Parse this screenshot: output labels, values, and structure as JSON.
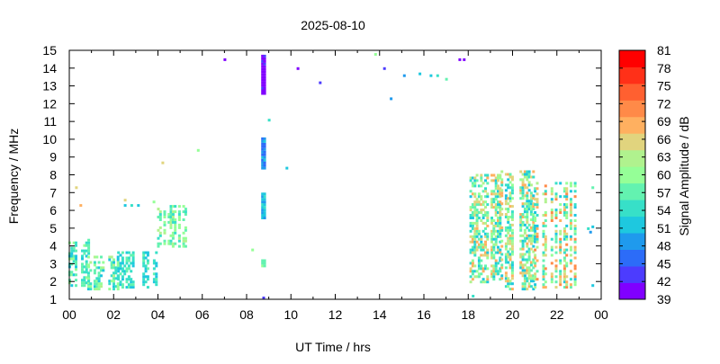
{
  "chart_data": {
    "type": "heatmap",
    "title": "2025-08-10",
    "xlabel": "UT Time / hrs",
    "ylabel": "Frequency / MHz",
    "xlim": [
      0,
      24
    ],
    "ylim": [
      1,
      15
    ],
    "x_ticks": [
      "00",
      "02",
      "04",
      "06",
      "08",
      "10",
      "12",
      "14",
      "16",
      "18",
      "20",
      "22",
      "00"
    ],
    "y_ticks": [
      "1",
      "2",
      "3",
      "4",
      "5",
      "6",
      "7",
      "8",
      "9",
      "10",
      "11",
      "12",
      "13",
      "14",
      "15"
    ],
    "colorbar": {
      "label": "Signal Amplitude / dB",
      "ticks": [
        "39",
        "42",
        "45",
        "48",
        "51",
        "54",
        "57",
        "60",
        "63",
        "66",
        "69",
        "72",
        "75",
        "78",
        "81"
      ],
      "range": [
        39,
        81
      ],
      "colors": [
        "#8000ff",
        "#4c3cfe",
        "#2c6cf8",
        "#1f9aed",
        "#1ec8df",
        "#37e0c8",
        "#63f2b0",
        "#95ff97",
        "#b0f28e",
        "#e1d47e",
        "#ffb060",
        "#ff8a48",
        "#ff6030",
        "#ff3018",
        "#ff0000"
      ]
    },
    "clusters": [
      {
        "x": [
          0.0,
          0.9
        ],
        "y": [
          1.8,
          4.4
        ],
        "level": [
          51,
          60
        ]
      },
      {
        "x": [
          0.85,
          2.3
        ],
        "y": [
          1.6,
          3.5
        ],
        "level": [
          51,
          63
        ]
      },
      {
        "x": [
          2.2,
          4.0
        ],
        "y": [
          1.7,
          3.7
        ],
        "level": [
          51,
          57
        ]
      },
      {
        "x": [
          4.0,
          5.4
        ],
        "y": [
          4.0,
          6.3
        ],
        "level": [
          54,
          63
        ]
      },
      {
        "x": [
          8.7,
          8.8
        ],
        "y": [
          12.6,
          14.8
        ],
        "level": [
          39,
          42
        ]
      },
      {
        "x": [
          8.7,
          8.8
        ],
        "y": [
          8.4,
          10.1
        ],
        "level": [
          45,
          51
        ]
      },
      {
        "x": [
          8.7,
          8.8
        ],
        "y": [
          5.6,
          7.0
        ],
        "level": [
          48,
          54
        ]
      },
      {
        "x": [
          8.7,
          8.8
        ],
        "y": [
          2.9,
          3.2
        ],
        "level": [
          54,
          60
        ]
      },
      {
        "x": [
          18.0,
          19.5
        ],
        "y": [
          2.0,
          8.1
        ],
        "level": [
          51,
          69
        ]
      },
      {
        "x": [
          19.5,
          21.0
        ],
        "y": [
          1.6,
          8.3
        ],
        "level": [
          51,
          69
        ]
      },
      {
        "x": [
          21.0,
          22.9
        ],
        "y": [
          1.7,
          7.6
        ],
        "level": [
          51,
          72
        ]
      }
    ],
    "points": [
      {
        "x": 0.3,
        "y": 7.3,
        "v": 66
      },
      {
        "x": 0.5,
        "y": 6.3,
        "v": 69
      },
      {
        "x": 2.5,
        "y": 6.6,
        "v": 66
      },
      {
        "x": 2.5,
        "y": 6.3,
        "v": 51
      },
      {
        "x": 2.8,
        "y": 6.3,
        "v": 54
      },
      {
        "x": 3.1,
        "y": 6.3,
        "v": 51
      },
      {
        "x": 3.8,
        "y": 6.5,
        "v": 60
      },
      {
        "x": 4.2,
        "y": 8.7,
        "v": 66
      },
      {
        "x": 5.8,
        "y": 9.4,
        "v": 60
      },
      {
        "x": 7.0,
        "y": 14.5,
        "v": 39
      },
      {
        "x": 8.25,
        "y": 3.8,
        "v": 60
      },
      {
        "x": 8.75,
        "y": 1.1,
        "v": 42
      },
      {
        "x": 9.0,
        "y": 11.1,
        "v": 54
      },
      {
        "x": 9.8,
        "y": 8.4,
        "v": 51
      },
      {
        "x": 10.3,
        "y": 14.0,
        "v": 39
      },
      {
        "x": 11.3,
        "y": 13.2,
        "v": 42
      },
      {
        "x": 13.8,
        "y": 14.8,
        "v": 60
      },
      {
        "x": 14.2,
        "y": 14.0,
        "v": 42
      },
      {
        "x": 14.5,
        "y": 12.3,
        "v": 48
      },
      {
        "x": 15.1,
        "y": 13.6,
        "v": 48
      },
      {
        "x": 15.8,
        "y": 13.7,
        "v": 51
      },
      {
        "x": 16.3,
        "y": 13.6,
        "v": 51
      },
      {
        "x": 16.6,
        "y": 13.6,
        "v": 54
      },
      {
        "x": 17.0,
        "y": 13.4,
        "v": 57
      },
      {
        "x": 17.6,
        "y": 14.5,
        "v": 39
      },
      {
        "x": 17.8,
        "y": 14.5,
        "v": 39
      },
      {
        "x": 18.2,
        "y": 1.2,
        "v": 54
      },
      {
        "x": 23.4,
        "y": 5.0,
        "v": 54
      },
      {
        "x": 23.5,
        "y": 4.8,
        "v": 48
      },
      {
        "x": 23.6,
        "y": 7.3,
        "v": 57
      },
      {
        "x": 23.6,
        "y": 5.1,
        "v": 51
      },
      {
        "x": 23.6,
        "y": 1.8,
        "v": 51
      }
    ]
  }
}
